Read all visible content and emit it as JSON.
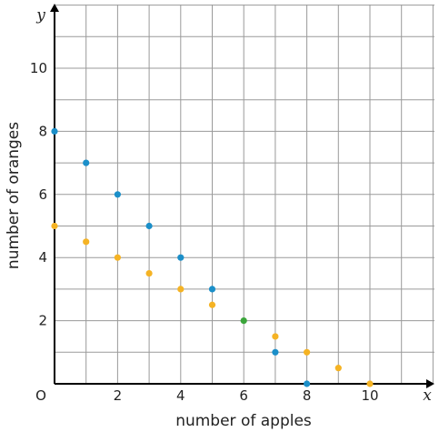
{
  "chart_data": {
    "type": "scatter",
    "xlabel": "number of apples",
    "ylabel": "number of oranges",
    "x_axis_var": "x",
    "y_axis_var": "y",
    "origin_label": "O",
    "xlim": [
      0,
      12
    ],
    "ylim": [
      0,
      12
    ],
    "x_ticks": [
      2,
      4,
      6,
      8,
      10
    ],
    "y_ticks": [
      2,
      4,
      6,
      8,
      10
    ],
    "grid": true,
    "series": [
      {
        "color": "#1b8fc9",
        "points": [
          [
            0,
            8
          ],
          [
            1,
            7
          ],
          [
            2,
            6
          ],
          [
            3,
            5
          ],
          [
            4,
            4
          ],
          [
            5,
            3
          ],
          [
            6,
            2
          ],
          [
            7,
            1
          ],
          [
            8,
            0
          ]
        ]
      },
      {
        "color": "#f5b324",
        "points": [
          [
            0,
            5
          ],
          [
            1,
            4.5
          ],
          [
            2,
            4
          ],
          [
            3,
            3.5
          ],
          [
            4,
            3
          ],
          [
            5,
            2.5
          ],
          [
            6,
            2
          ],
          [
            7,
            1.5
          ],
          [
            8,
            1
          ],
          [
            9,
            0.5
          ],
          [
            10,
            0
          ]
        ]
      }
    ],
    "intersection": {
      "color": "#3aa53a",
      "point": [
        6,
        2
      ]
    }
  }
}
